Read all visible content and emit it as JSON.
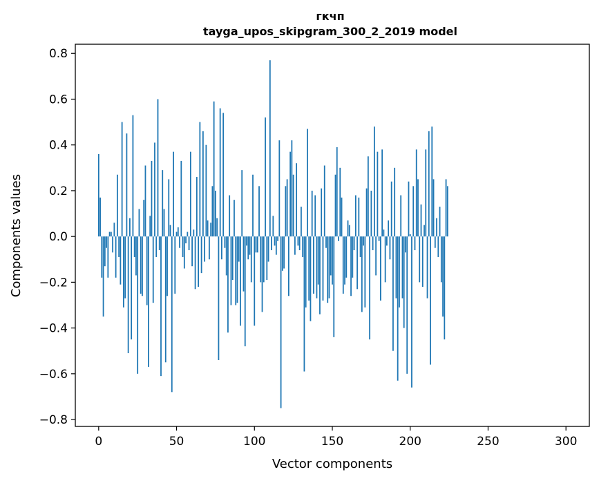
{
  "chart_data": {
    "type": "bar",
    "title_line1": "гкчп",
    "title_line2": "tayga_upos_skipgram_300_2_2019 model",
    "xlabel": "Vector components",
    "ylabel": "Components values",
    "xlim": [
      -15,
      315
    ],
    "ylim": [
      -0.83,
      0.84
    ],
    "xticks": [
      0,
      50,
      100,
      150,
      200,
      250,
      300
    ],
    "yticks": [
      -0.8,
      -0.6,
      -0.4,
      -0.2,
      0.0,
      0.2,
      0.4,
      0.6,
      0.8
    ],
    "ytick_labels": [
      "−0.8",
      "−0.6",
      "−0.4",
      "−0.2",
      "0.0",
      "0.2",
      "0.4",
      "0.6",
      "0.8"
    ],
    "bar_color": "#1f77b4",
    "values": [
      0.36,
      0.17,
      -0.18,
      -0.35,
      -0.13,
      -0.05,
      -0.18,
      0.02,
      0.02,
      -0.07,
      0.06,
      -0.18,
      0.27,
      -0.09,
      -0.21,
      0.5,
      -0.31,
      -0.27,
      0.45,
      -0.51,
      0.08,
      -0.45,
      0.53,
      -0.09,
      -0.17,
      -0.6,
      0.12,
      -0.25,
      -0.26,
      0.16,
      0.31,
      -0.3,
      -0.57,
      0.09,
      0.33,
      -0.29,
      0.41,
      -0.09,
      0.6,
      -0.06,
      -0.61,
      0.29,
      0.12,
      -0.55,
      -0.26,
      0.25,
      0.05,
      -0.68,
      0.37,
      -0.25,
      0.02,
      0.04,
      -0.05,
      0.33,
      -0.09,
      -0.14,
      -0.03,
      0.02,
      -0.06,
      0.37,
      -0.13,
      0.03,
      -0.23,
      0.26,
      -0.22,
      0.5,
      -0.16,
      0.46,
      -0.11,
      0.4,
      0.07,
      -0.1,
      0.06,
      0.22,
      0.59,
      0.2,
      0.08,
      -0.54,
      0.56,
      -0.1,
      0.54,
      -0.05,
      -0.17,
      -0.42,
      0.18,
      -0.3,
      -0.19,
      0.16,
      -0.3,
      -0.29,
      -0.11,
      -0.39,
      0.29,
      -0.24,
      -0.48,
      -0.04,
      -0.1,
      -0.08,
      -0.2,
      0.27,
      -0.39,
      -0.07,
      -0.07,
      0.22,
      -0.2,
      -0.33,
      -0.2,
      0.52,
      -0.19,
      -0.11,
      0.77,
      -0.06,
      0.09,
      -0.04,
      -0.08,
      -0.02,
      0.42,
      -0.75,
      -0.15,
      -0.14,
      0.22,
      0.25,
      -0.26,
      0.37,
      0.42,
      0.27,
      -0.08,
      0.32,
      -0.04,
      -0.06,
      0.13,
      -0.09,
      -0.59,
      -0.31,
      0.47,
      -0.28,
      -0.37,
      0.2,
      -0.25,
      0.18,
      -0.27,
      -0.21,
      -0.34,
      0.21,
      -0.28,
      0.31,
      -0.05,
      -0.29,
      -0.27,
      -0.17,
      -0.21,
      -0.44,
      0.27,
      0.39,
      -0.02,
      0.3,
      0.17,
      -0.25,
      -0.21,
      -0.18,
      0.07,
      0.05,
      -0.26,
      -0.18,
      -0.06,
      0.18,
      -0.23,
      0.17,
      -0.09,
      -0.33,
      -0.04,
      -0.31,
      0.21,
      0.35,
      -0.45,
      0.2,
      -0.06,
      0.48,
      -0.17,
      0.37,
      -0.02,
      -0.28,
      0.38,
      0.03,
      -0.2,
      -0.04,
      0.07,
      -0.1,
      0.24,
      -0.5,
      0.3,
      -0.27,
      -0.63,
      -0.31,
      0.18,
      -0.27,
      -0.4,
      -0.07,
      -0.6,
      0.24,
      0.01,
      -0.66,
      0.22,
      -0.06,
      0.38,
      0.25,
      -0.2,
      0.14,
      -0.22,
      0.05,
      0.38,
      -0.27,
      0.46,
      -0.56,
      0.48,
      0.25,
      -0.05,
      0.08,
      -0.09,
      0.13,
      -0.2,
      -0.35,
      -0.45,
      0.25,
      0.22
    ]
  }
}
